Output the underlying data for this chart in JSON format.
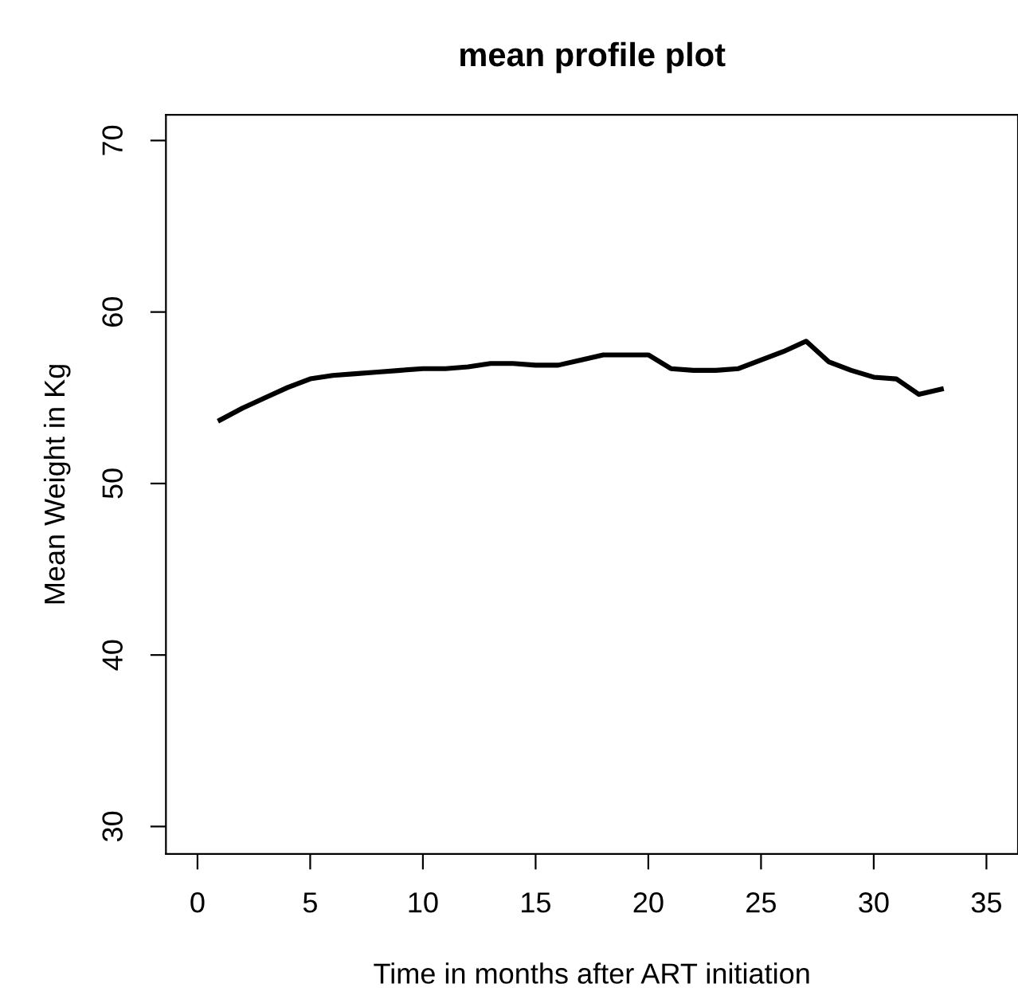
{
  "chart_data": {
    "type": "line",
    "title": "mean profile plot",
    "xlabel": "Time in months after ART initiation",
    "ylabel": "Mean Weight in Kg",
    "x": [
      1,
      2,
      3,
      4,
      5,
      6,
      7,
      8,
      9,
      10,
      11,
      12,
      13,
      14,
      15,
      16,
      17,
      18,
      19,
      20,
      21,
      22,
      23,
      24,
      25,
      26,
      27,
      28,
      29,
      30,
      31,
      32,
      33
    ],
    "series": [
      {
        "color": "#000000",
        "values": [
          53.7,
          54.4,
          55.0,
          55.6,
          56.1,
          56.3,
          56.4,
          56.5,
          56.6,
          56.7,
          56.7,
          56.8,
          57.0,
          57.0,
          56.9,
          56.9,
          57.2,
          57.5,
          57.5,
          57.5,
          56.7,
          56.6,
          56.6,
          56.7,
          57.2,
          57.7,
          58.3,
          57.1,
          56.6,
          56.2,
          56.1,
          55.2,
          55.5
        ]
      }
    ],
    "xlim": [
      -1.4,
      36.4
    ],
    "ylim": [
      28.4,
      71.5
    ],
    "xticks": [
      0,
      5,
      10,
      15,
      20,
      25,
      30,
      35
    ],
    "yticks": [
      30,
      40,
      50,
      60,
      70
    ],
    "grid": false,
    "legend": false,
    "marker": "none",
    "line_style": "solid"
  }
}
